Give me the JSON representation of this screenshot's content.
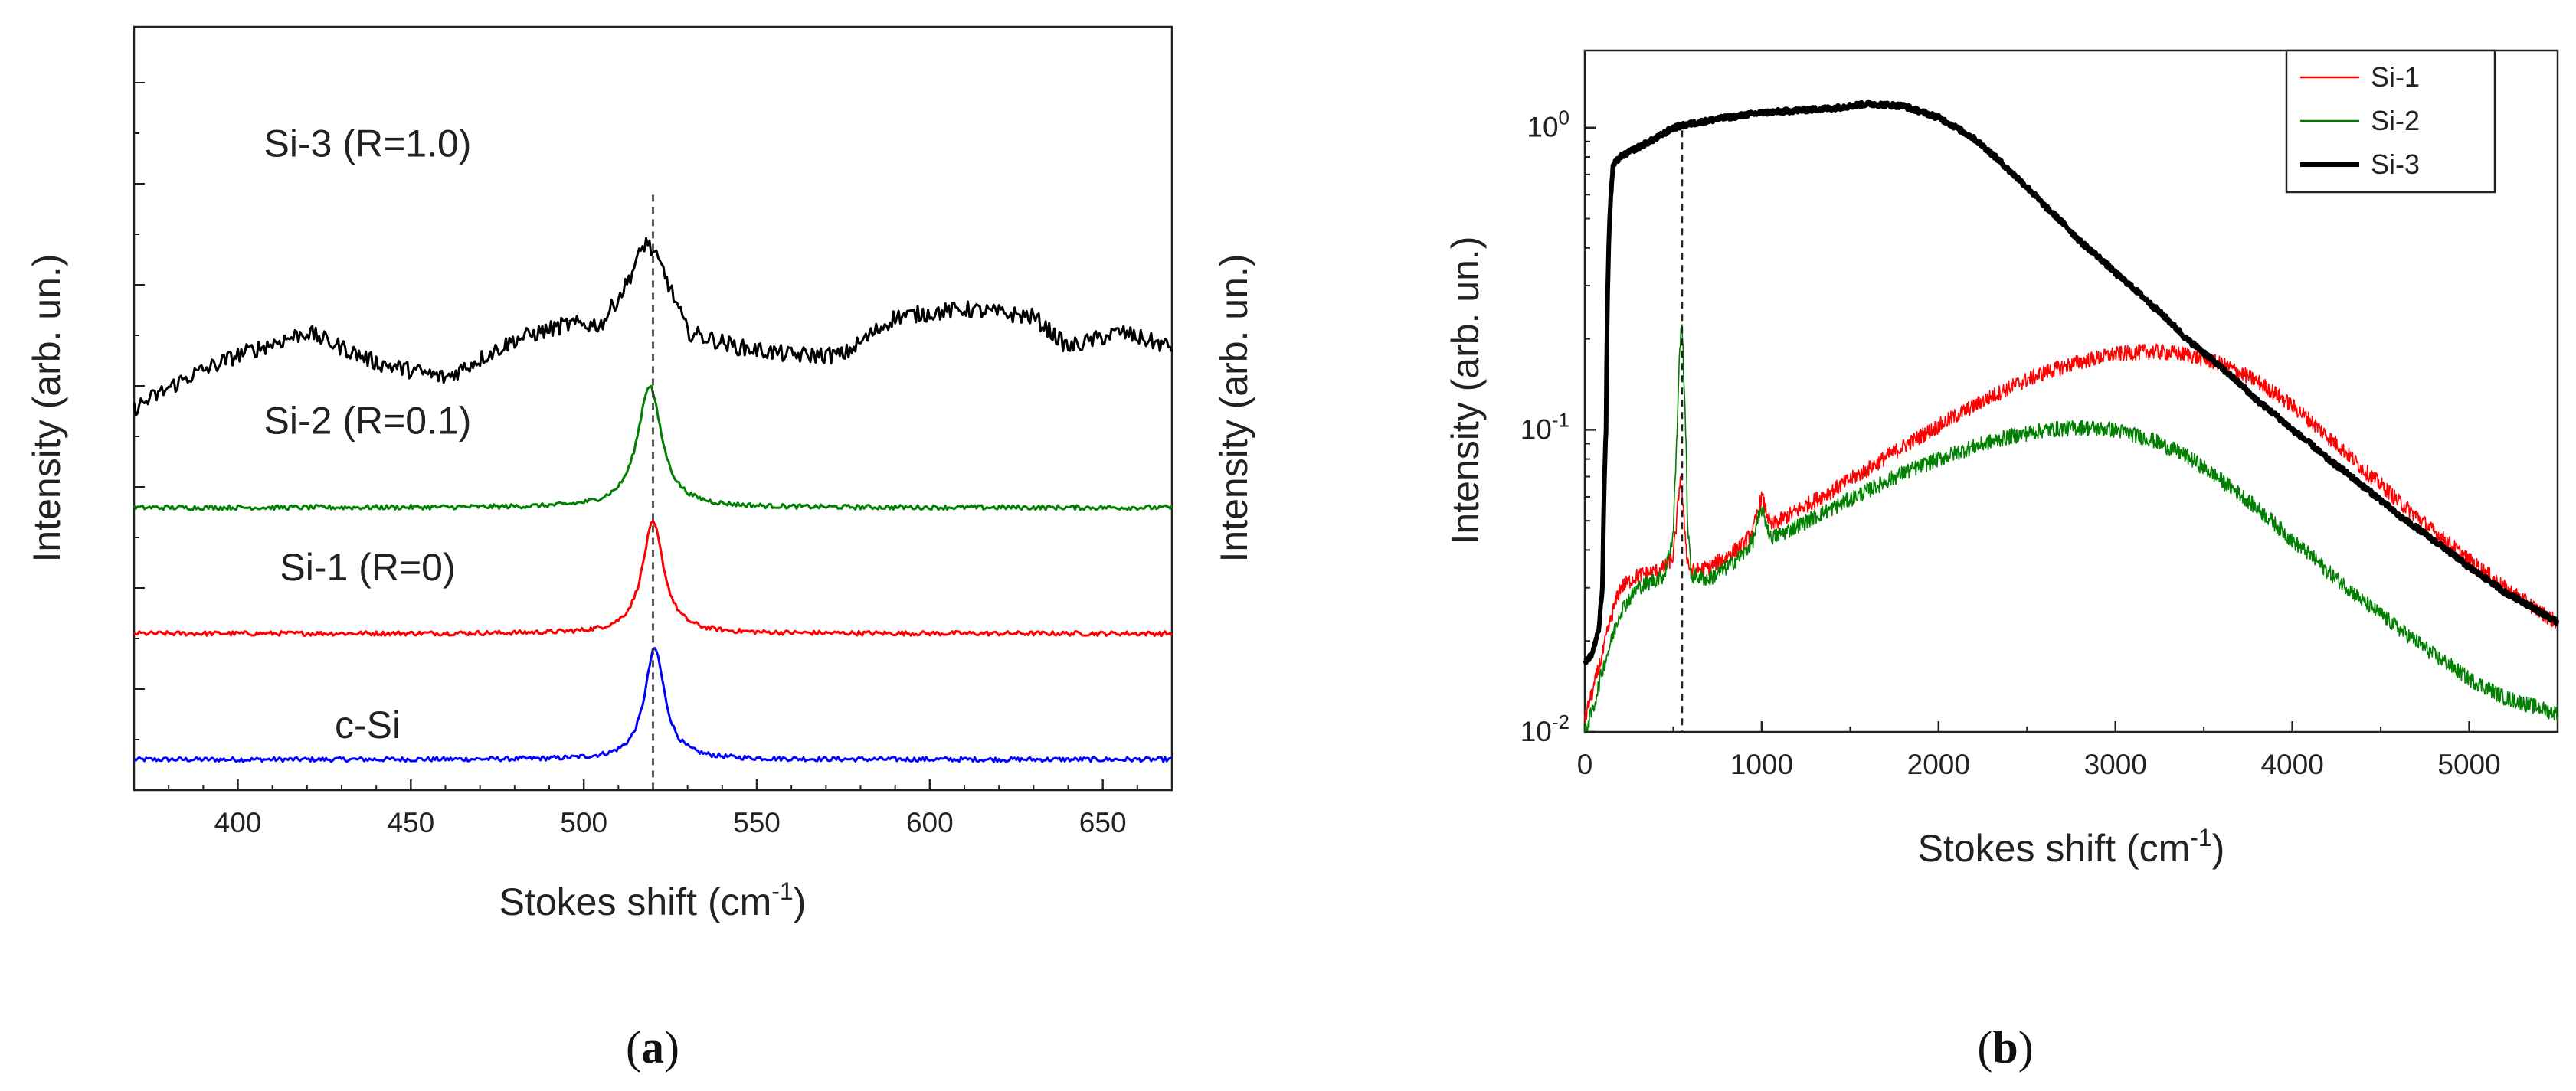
{
  "chart_data": [
    {
      "panel": "(a)",
      "panel_letter": "a",
      "type": "line",
      "title": "",
      "xlabel": "Stokes shift (cm",
      "xlabel_sup": "-1",
      "xlabel_close": ")",
      "ylabel": "Intensity (arb. un.)",
      "xlim": [
        370,
        670
      ],
      "xticks": [
        400,
        450,
        500,
        550,
        600,
        650
      ],
      "ylim": [
        0,
        1
      ],
      "y_scale": "linear (stacked, offset traces; no numeric y tick labels)",
      "reference_line_x": 520,
      "series": [
        {
          "name": "c-Si",
          "label": "c-Si",
          "color": "#0000ff",
          "baseline": 0.04,
          "peak_center": 520.5,
          "peak_height": 0.145,
          "peak_width": 3.5
        },
        {
          "name": "Si-1",
          "label": "Si-1 (R=0)",
          "color": "#ff0000",
          "baseline": 0.205,
          "peak_center": 520,
          "peak_height": 0.145,
          "peak_width": 3.8
        },
        {
          "name": "Si-2",
          "label": "Si-2 (R=0.1)",
          "color": "#008000",
          "baseline": 0.37,
          "peak_center": 519,
          "peak_height": 0.16,
          "peak_width": 4.2
        },
        {
          "name": "Si-3",
          "label": "Si-3 (R=1.0)",
          "color": "#000000",
          "x": [
            370,
            385,
            400,
            420,
            440,
            460,
            480,
            495,
            505,
            512,
            518,
            523,
            530,
            545,
            560,
            575,
            590,
            610,
            630,
            640,
            655,
            670
          ],
          "values": [
            0.5,
            0.54,
            0.57,
            0.6,
            0.56,
            0.54,
            0.59,
            0.61,
            0.61,
            0.66,
            0.72,
            0.68,
            0.6,
            0.58,
            0.57,
            0.57,
            0.62,
            0.63,
            0.62,
            0.58,
            0.6,
            0.58
          ]
        }
      ]
    },
    {
      "panel": "(b)",
      "panel_letter": "b",
      "type": "line",
      "title": "",
      "xlabel": "Stokes shift (cm",
      "xlabel_sup": "-1",
      "xlabel_close": ")",
      "ylabel": "Intensity (arb. un.)",
      "x_scale": "linear",
      "y_scale": "log",
      "xlim": [
        0,
        5500
      ],
      "xticks": [
        0,
        1000,
        2000,
        3000,
        4000,
        5000
      ],
      "ylim": [
        0.01,
        1.8
      ],
      "yticks": [
        {
          "base": "10",
          "exp": "0",
          "value": 1
        },
        {
          "base": "10",
          "exp": "-1",
          "value": 0.1
        },
        {
          "base": "10",
          "exp": "-2",
          "value": 0.01
        }
      ],
      "reference_line_x": 550,
      "legend": {
        "position": "top-right"
      },
      "series": [
        {
          "name": "Si-1",
          "color": "#ff0000",
          "line": "thin",
          "x": [
            0,
            50,
            100,
            150,
            200,
            300,
            400,
            450,
            500,
            520,
            540,
            560,
            580,
            600,
            700,
            800,
            900,
            950,
            1000,
            1050,
            1100,
            1200,
            1400,
            1600,
            1800,
            2000,
            2200,
            2400,
            2600,
            2800,
            3000,
            3200,
            3400,
            3600,
            3800,
            4000,
            4200,
            4400,
            4600,
            4800,
            5000,
            5200,
            5400,
            5500
          ],
          "values": [
            0.011,
            0.014,
            0.018,
            0.024,
            0.03,
            0.033,
            0.034,
            0.035,
            0.038,
            0.05,
            0.07,
            0.05,
            0.037,
            0.034,
            0.035,
            0.038,
            0.042,
            0.046,
            0.06,
            0.048,
            0.05,
            0.054,
            0.063,
            0.074,
            0.088,
            0.103,
            0.12,
            0.138,
            0.155,
            0.168,
            0.178,
            0.182,
            0.178,
            0.165,
            0.145,
            0.12,
            0.095,
            0.074,
            0.058,
            0.046,
            0.037,
            0.03,
            0.025,
            0.023
          ]
        },
        {
          "name": "Si-2",
          "color": "#008000",
          "line": "thin",
          "x": [
            0,
            50,
            100,
            150,
            200,
            300,
            400,
            450,
            500,
            520,
            540,
            550,
            560,
            580,
            600,
            700,
            800,
            900,
            950,
            1000,
            1050,
            1100,
            1200,
            1400,
            1600,
            1800,
            2000,
            2200,
            2400,
            2600,
            2800,
            3000,
            3200,
            3400,
            3600,
            3800,
            4000,
            4200,
            4400,
            4600,
            4800,
            5000,
            5200,
            5400,
            5500
          ],
          "values": [
            0.01,
            0.012,
            0.016,
            0.02,
            0.025,
            0.03,
            0.032,
            0.033,
            0.045,
            0.09,
            0.2,
            0.22,
            0.15,
            0.05,
            0.033,
            0.032,
            0.035,
            0.039,
            0.043,
            0.055,
            0.044,
            0.045,
            0.048,
            0.055,
            0.063,
            0.072,
            0.08,
            0.088,
            0.095,
            0.1,
            0.102,
            0.1,
            0.093,
            0.082,
            0.068,
            0.055,
            0.043,
            0.034,
            0.027,
            0.022,
            0.018,
            0.015,
            0.013,
            0.012,
            0.0115
          ]
        },
        {
          "name": "Si-3",
          "color": "#000000",
          "line": "thick",
          "x": [
            0,
            40,
            80,
            100,
            120,
            140,
            160,
            200,
            300,
            400,
            500,
            600,
            800,
            1000,
            1200,
            1400,
            1600,
            1800,
            2000,
            2200,
            2400,
            2600,
            2800,
            3000,
            3200,
            3400,
            3600,
            3800,
            4000,
            4200,
            4400,
            4600,
            4800,
            5000,
            5200,
            5400,
            5500
          ],
          "values": [
            0.017,
            0.018,
            0.022,
            0.03,
            0.1,
            0.5,
            0.75,
            0.8,
            0.86,
            0.92,
            1.0,
            1.03,
            1.08,
            1.12,
            1.14,
            1.16,
            1.2,
            1.18,
            1.08,
            0.92,
            0.72,
            0.55,
            0.42,
            0.33,
            0.26,
            0.2,
            0.16,
            0.125,
            0.1,
            0.08,
            0.065,
            0.052,
            0.043,
            0.035,
            0.029,
            0.025,
            0.023
          ]
        }
      ]
    }
  ]
}
